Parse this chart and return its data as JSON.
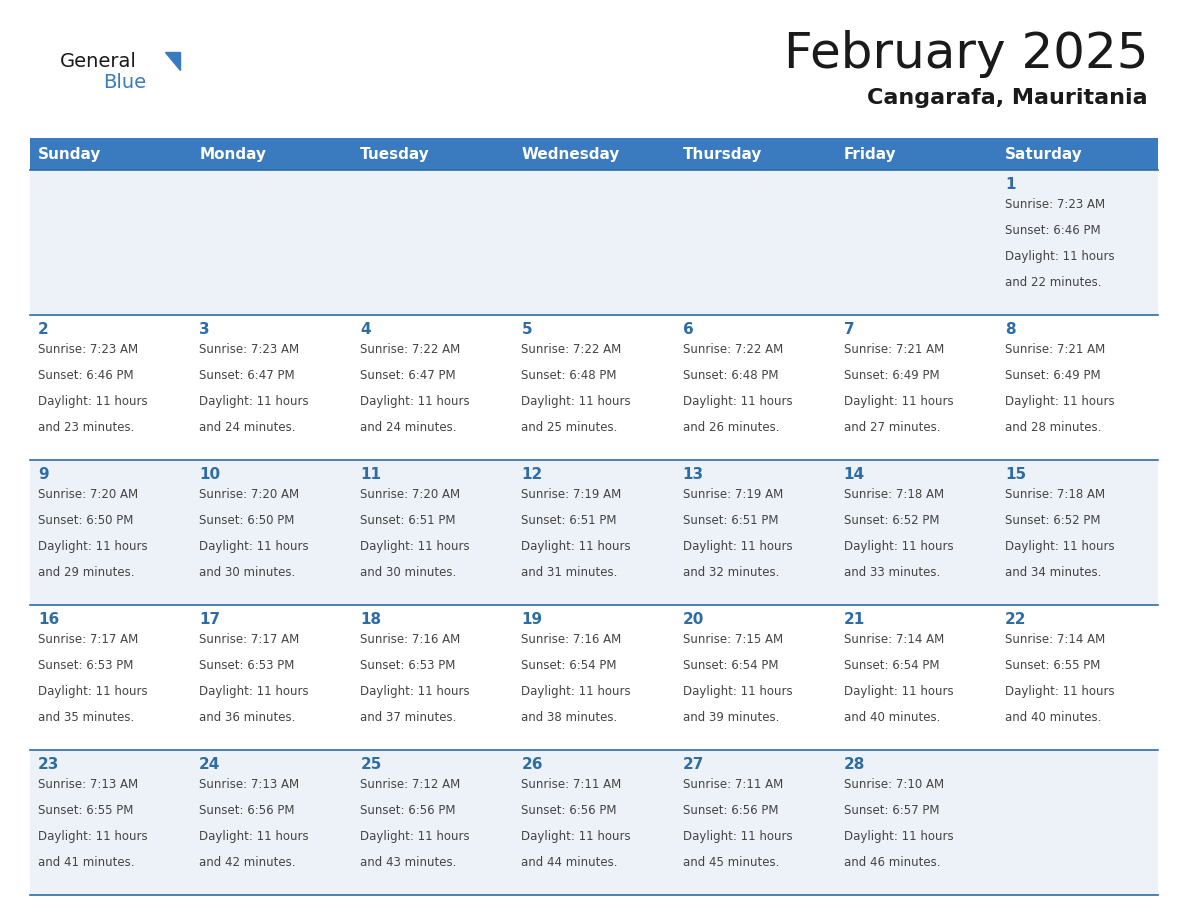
{
  "title": "February 2025",
  "subtitle": "Cangarafa, Mauritania",
  "header_bg": "#3a7abf",
  "header_text_color": "#ffffff",
  "day_headers": [
    "Sunday",
    "Monday",
    "Tuesday",
    "Wednesday",
    "Thursday",
    "Friday",
    "Saturday"
  ],
  "separator_color": "#2e6da4",
  "row_sep_color": "#2e6da4",
  "day_num_color": "#2e6da4",
  "info_color": "#444444",
  "title_color": "#1a1a1a",
  "subtitle_color": "#1a1a1a",
  "cell_bg_light": "#edf2f8",
  "cell_bg_white": "#ffffff",
  "calendar_data": [
    [
      null,
      null,
      null,
      null,
      null,
      null,
      {
        "day": 1,
        "sunrise": "7:23 AM",
        "sunset": "6:46 PM",
        "daylight_line1": "Daylight: 11 hours",
        "daylight_line2": "and 22 minutes."
      }
    ],
    [
      {
        "day": 2,
        "sunrise": "7:23 AM",
        "sunset": "6:46 PM",
        "daylight_line1": "Daylight: 11 hours",
        "daylight_line2": "and 23 minutes."
      },
      {
        "day": 3,
        "sunrise": "7:23 AM",
        "sunset": "6:47 PM",
        "daylight_line1": "Daylight: 11 hours",
        "daylight_line2": "and 24 minutes."
      },
      {
        "day": 4,
        "sunrise": "7:22 AM",
        "sunset": "6:47 PM",
        "daylight_line1": "Daylight: 11 hours",
        "daylight_line2": "and 24 minutes."
      },
      {
        "day": 5,
        "sunrise": "7:22 AM",
        "sunset": "6:48 PM",
        "daylight_line1": "Daylight: 11 hours",
        "daylight_line2": "and 25 minutes."
      },
      {
        "day": 6,
        "sunrise": "7:22 AM",
        "sunset": "6:48 PM",
        "daylight_line1": "Daylight: 11 hours",
        "daylight_line2": "and 26 minutes."
      },
      {
        "day": 7,
        "sunrise": "7:21 AM",
        "sunset": "6:49 PM",
        "daylight_line1": "Daylight: 11 hours",
        "daylight_line2": "and 27 minutes."
      },
      {
        "day": 8,
        "sunrise": "7:21 AM",
        "sunset": "6:49 PM",
        "daylight_line1": "Daylight: 11 hours",
        "daylight_line2": "and 28 minutes."
      }
    ],
    [
      {
        "day": 9,
        "sunrise": "7:20 AM",
        "sunset": "6:50 PM",
        "daylight_line1": "Daylight: 11 hours",
        "daylight_line2": "and 29 minutes."
      },
      {
        "day": 10,
        "sunrise": "7:20 AM",
        "sunset": "6:50 PM",
        "daylight_line1": "Daylight: 11 hours",
        "daylight_line2": "and 30 minutes."
      },
      {
        "day": 11,
        "sunrise": "7:20 AM",
        "sunset": "6:51 PM",
        "daylight_line1": "Daylight: 11 hours",
        "daylight_line2": "and 30 minutes."
      },
      {
        "day": 12,
        "sunrise": "7:19 AM",
        "sunset": "6:51 PM",
        "daylight_line1": "Daylight: 11 hours",
        "daylight_line2": "and 31 minutes."
      },
      {
        "day": 13,
        "sunrise": "7:19 AM",
        "sunset": "6:51 PM",
        "daylight_line1": "Daylight: 11 hours",
        "daylight_line2": "and 32 minutes."
      },
      {
        "day": 14,
        "sunrise": "7:18 AM",
        "sunset": "6:52 PM",
        "daylight_line1": "Daylight: 11 hours",
        "daylight_line2": "and 33 minutes."
      },
      {
        "day": 15,
        "sunrise": "7:18 AM",
        "sunset": "6:52 PM",
        "daylight_line1": "Daylight: 11 hours",
        "daylight_line2": "and 34 minutes."
      }
    ],
    [
      {
        "day": 16,
        "sunrise": "7:17 AM",
        "sunset": "6:53 PM",
        "daylight_line1": "Daylight: 11 hours",
        "daylight_line2": "and 35 minutes."
      },
      {
        "day": 17,
        "sunrise": "7:17 AM",
        "sunset": "6:53 PM",
        "daylight_line1": "Daylight: 11 hours",
        "daylight_line2": "and 36 minutes."
      },
      {
        "day": 18,
        "sunrise": "7:16 AM",
        "sunset": "6:53 PM",
        "daylight_line1": "Daylight: 11 hours",
        "daylight_line2": "and 37 minutes."
      },
      {
        "day": 19,
        "sunrise": "7:16 AM",
        "sunset": "6:54 PM",
        "daylight_line1": "Daylight: 11 hours",
        "daylight_line2": "and 38 minutes."
      },
      {
        "day": 20,
        "sunrise": "7:15 AM",
        "sunset": "6:54 PM",
        "daylight_line1": "Daylight: 11 hours",
        "daylight_line2": "and 39 minutes."
      },
      {
        "day": 21,
        "sunrise": "7:14 AM",
        "sunset": "6:54 PM",
        "daylight_line1": "Daylight: 11 hours",
        "daylight_line2": "and 40 minutes."
      },
      {
        "day": 22,
        "sunrise": "7:14 AM",
        "sunset": "6:55 PM",
        "daylight_line1": "Daylight: 11 hours",
        "daylight_line2": "and 40 minutes."
      }
    ],
    [
      {
        "day": 23,
        "sunrise": "7:13 AM",
        "sunset": "6:55 PM",
        "daylight_line1": "Daylight: 11 hours",
        "daylight_line2": "and 41 minutes."
      },
      {
        "day": 24,
        "sunrise": "7:13 AM",
        "sunset": "6:56 PM",
        "daylight_line1": "Daylight: 11 hours",
        "daylight_line2": "and 42 minutes."
      },
      {
        "day": 25,
        "sunrise": "7:12 AM",
        "sunset": "6:56 PM",
        "daylight_line1": "Daylight: 11 hours",
        "daylight_line2": "and 43 minutes."
      },
      {
        "day": 26,
        "sunrise": "7:11 AM",
        "sunset": "6:56 PM",
        "daylight_line1": "Daylight: 11 hours",
        "daylight_line2": "and 44 minutes."
      },
      {
        "day": 27,
        "sunrise": "7:11 AM",
        "sunset": "6:56 PM",
        "daylight_line1": "Daylight: 11 hours",
        "daylight_line2": "and 45 minutes."
      },
      {
        "day": 28,
        "sunrise": "7:10 AM",
        "sunset": "6:57 PM",
        "daylight_line1": "Daylight: 11 hours",
        "daylight_line2": "and 46 minutes."
      },
      null
    ]
  ]
}
